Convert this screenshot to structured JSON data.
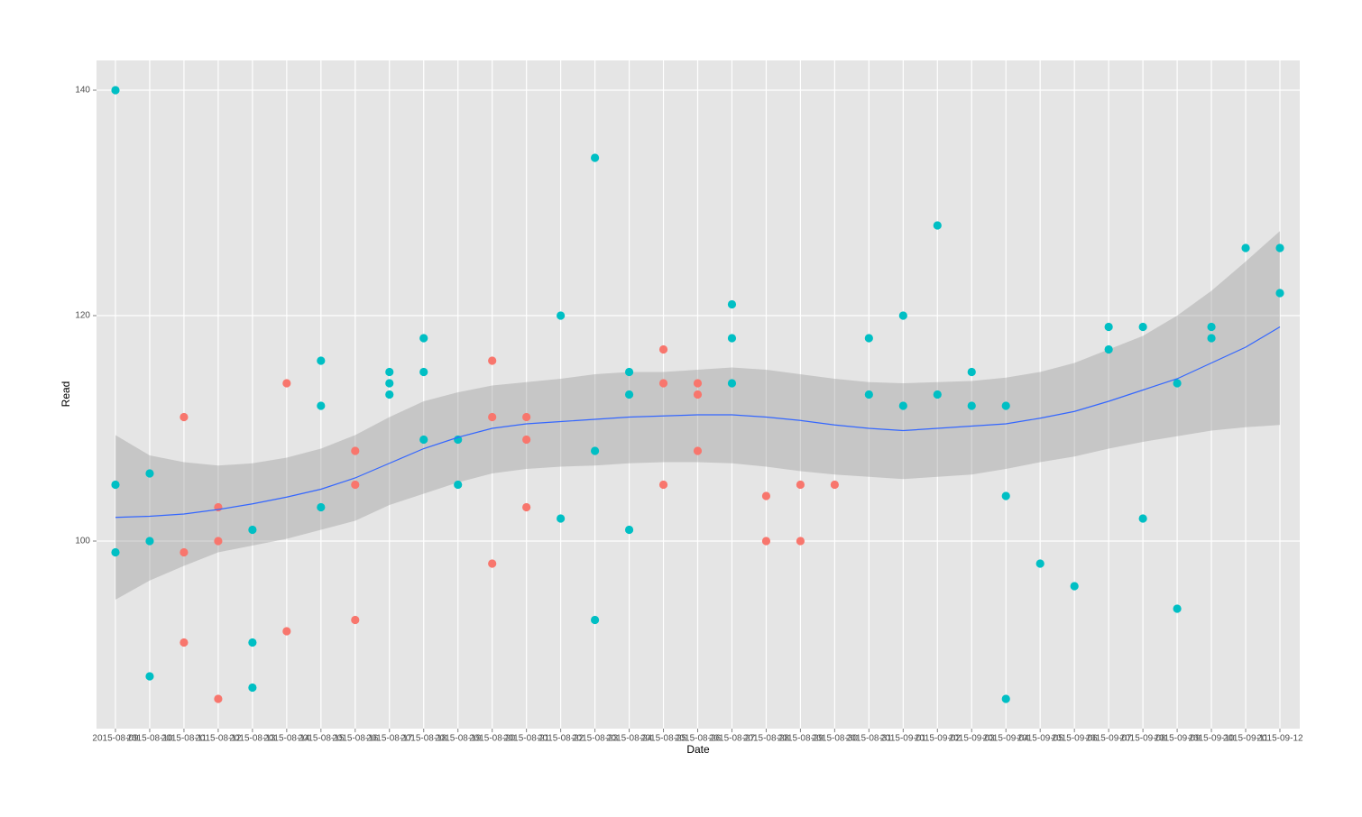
{
  "chart_data": {
    "type": "scatter",
    "x_label": "Date",
    "y_label": "Read",
    "categories": [
      "2015-08-09",
      "2015-08-10",
      "2015-08-11",
      "2015-08-12",
      "2015-08-13",
      "2015-08-14",
      "2015-08-15",
      "2015-08-16",
      "2015-08-17",
      "2015-08-18",
      "2015-08-19",
      "2015-08-20",
      "2015-08-21",
      "2015-08-22",
      "2015-08-23",
      "2015-08-24",
      "2015-08-25",
      "2015-08-26",
      "2015-08-27",
      "2015-08-28",
      "2015-08-29",
      "2015-08-30",
      "2015-08-31",
      "2015-09-01",
      "2015-09-02",
      "2015-09-03",
      "2015-09-04",
      "2015-09-05",
      "2015-09-06",
      "2015-09-07",
      "2015-09-08",
      "2015-09-09",
      "2015-09-10",
      "2015-09-11",
      "2015-09-12"
    ],
    "ylim": [
      83.36,
      142.64
    ],
    "yticks": [
      100,
      120,
      140
    ],
    "grid": true,
    "series": [
      {
        "color": "#f8766d",
        "x": [
          "2015-08-11",
          "2015-08-11",
          "2015-08-11",
          "2015-08-12",
          "2015-08-12",
          "2015-08-12",
          "2015-08-14",
          "2015-08-14",
          "2015-08-16",
          "2015-08-16",
          "2015-08-16",
          "2015-08-20",
          "2015-08-20",
          "2015-08-20",
          "2015-08-21",
          "2015-08-21",
          "2015-08-21",
          "2015-08-25",
          "2015-08-25",
          "2015-08-25",
          "2015-08-26",
          "2015-08-26",
          "2015-08-26",
          "2015-08-28",
          "2015-08-28",
          "2015-08-29",
          "2015-08-29",
          "2015-08-30"
        ],
        "values": [
          111,
          99,
          91,
          103,
          100,
          86,
          114,
          92,
          108,
          105,
          93,
          116,
          111,
          98,
          111,
          109,
          103,
          117,
          114,
          105,
          114,
          113,
          108,
          104,
          100,
          105,
          100,
          105
        ]
      },
      {
        "color": "#00bfc4",
        "x": [
          "2015-08-09",
          "2015-08-09",
          "2015-08-09",
          "2015-08-10",
          "2015-08-10",
          "2015-08-10",
          "2015-08-13",
          "2015-08-13",
          "2015-08-13",
          "2015-08-15",
          "2015-08-15",
          "2015-08-15",
          "2015-08-17",
          "2015-08-17",
          "2015-08-17",
          "2015-08-18",
          "2015-08-18",
          "2015-08-18",
          "2015-08-19",
          "2015-08-19",
          "2015-08-22",
          "2015-08-22",
          "2015-08-23",
          "2015-08-23",
          "2015-08-23",
          "2015-08-24",
          "2015-08-24",
          "2015-08-24",
          "2015-08-27",
          "2015-08-27",
          "2015-08-27",
          "2015-08-31",
          "2015-08-31",
          "2015-09-01",
          "2015-09-01",
          "2015-09-02",
          "2015-09-02",
          "2015-09-03",
          "2015-09-03",
          "2015-09-04",
          "2015-09-04",
          "2015-09-04",
          "2015-09-05",
          "2015-09-06",
          "2015-09-07",
          "2015-09-07",
          "2015-09-08",
          "2015-09-08",
          "2015-09-09",
          "2015-09-09",
          "2015-09-10",
          "2015-09-10",
          "2015-09-11",
          "2015-09-12",
          "2015-09-12"
        ],
        "values": [
          140,
          105,
          99,
          106,
          100,
          88,
          101,
          91,
          87,
          116,
          112,
          103,
          115,
          114,
          113,
          118,
          115,
          109,
          109,
          105,
          120,
          102,
          134,
          108,
          93,
          115,
          113,
          101,
          121,
          118,
          114,
          118,
          113,
          120,
          112,
          128,
          113,
          115,
          112,
          112,
          104,
          86,
          98,
          96,
          119,
          117,
          119,
          102,
          114,
          94,
          119,
          118,
          126,
          126,
          122
        ]
      }
    ],
    "smooth": {
      "color": "#3366ff",
      "band_color": "#999999",
      "values": [
        102.1,
        102.2,
        102.4,
        102.8,
        103.3,
        103.9,
        104.6,
        105.6,
        106.9,
        108.2,
        109.2,
        110.0,
        110.4,
        110.6,
        110.8,
        111.0,
        111.1,
        111.2,
        111.2,
        111.0,
        110.7,
        110.3,
        110.0,
        109.8,
        110.0,
        110.2,
        110.4,
        110.9,
        111.5,
        112.4,
        113.4,
        114.4,
        115.8,
        117.2,
        119.0
      ],
      "lower": [
        94.8,
        96.5,
        97.8,
        99.0,
        99.6,
        100.2,
        101.0,
        101.8,
        103.2,
        104.2,
        105.2,
        106.0,
        106.4,
        106.6,
        106.7,
        106.9,
        107.0,
        107.0,
        106.9,
        106.6,
        106.2,
        105.9,
        105.7,
        105.5,
        105.7,
        105.9,
        106.4,
        107.0,
        107.5,
        108.2,
        108.8,
        109.3,
        109.8,
        110.1,
        110.3
      ],
      "upper": [
        109.4,
        107.6,
        107.0,
        106.7,
        106.9,
        107.4,
        108.2,
        109.4,
        111.0,
        112.4,
        113.2,
        113.8,
        114.1,
        114.4,
        114.8,
        115.0,
        115.0,
        115.2,
        115.4,
        115.2,
        114.8,
        114.4,
        114.1,
        114.0,
        114.1,
        114.2,
        114.5,
        115.0,
        115.8,
        117.0,
        118.2,
        120.0,
        122.2,
        124.8,
        127.5
      ]
    }
  }
}
